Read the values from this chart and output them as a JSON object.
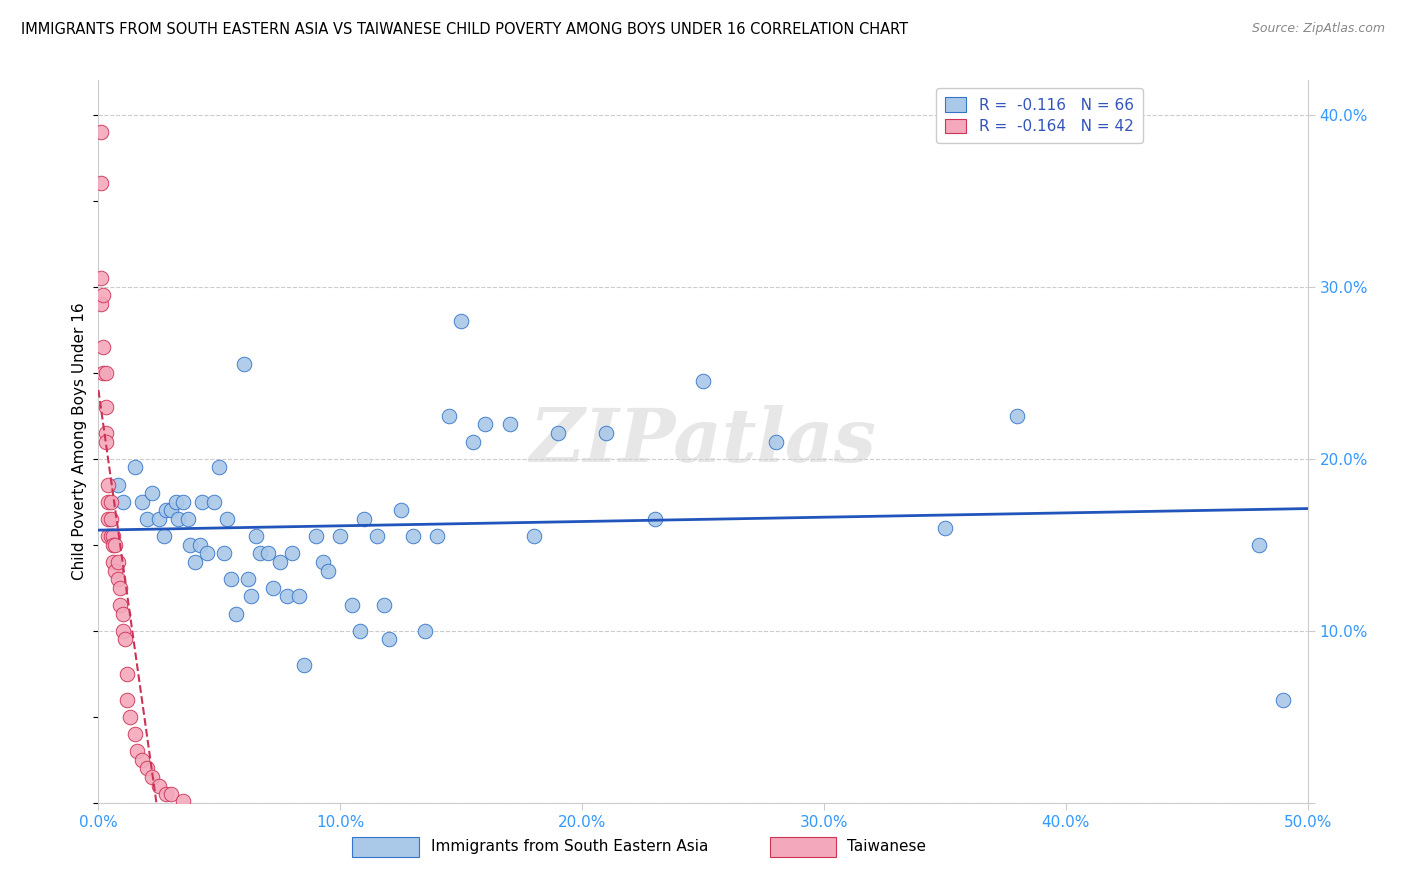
{
  "title": "IMMIGRANTS FROM SOUTH EASTERN ASIA VS TAIWANESE CHILD POVERTY AMONG BOYS UNDER 16 CORRELATION CHART",
  "source": "Source: ZipAtlas.com",
  "ylabel": "Child Poverty Among Boys Under 16",
  "legend_label1": "Immigrants from South Eastern Asia",
  "legend_label2": "Taiwanese",
  "R1": "-0.116",
  "N1": "66",
  "R2": "-0.164",
  "N2": "42",
  "xlim": [
    0.0,
    0.5
  ],
  "ylim": [
    0.0,
    0.42
  ],
  "yticks": [
    0.0,
    0.1,
    0.2,
    0.3,
    0.4
  ],
  "xticks": [
    0.0,
    0.1,
    0.2,
    0.3,
    0.4,
    0.5
  ],
  "xtick_labels": [
    "0.0%",
    "10.0%",
    "20.0%",
    "30.0%",
    "40.0%",
    "50.0%"
  ],
  "ytick_labels": [
    "",
    "10.0%",
    "20.0%",
    "30.0%",
    "40.0%"
  ],
  "color_blue": "#aac8e8",
  "color_pink": "#f4a8bc",
  "line_blue": "#3375c8",
  "line_pink": "#e0406080",
  "reg_blue": "#2255bb",
  "reg_pink": "#cc3355",
  "watermark": "ZIPatlas",
  "blue_x": [
    0.008,
    0.01,
    0.015,
    0.018,
    0.02,
    0.022,
    0.025,
    0.027,
    0.028,
    0.03,
    0.032,
    0.033,
    0.035,
    0.037,
    0.038,
    0.04,
    0.042,
    0.043,
    0.045,
    0.048,
    0.05,
    0.052,
    0.053,
    0.055,
    0.057,
    0.06,
    0.062,
    0.063,
    0.065,
    0.067,
    0.07,
    0.072,
    0.075,
    0.078,
    0.08,
    0.083,
    0.085,
    0.09,
    0.093,
    0.095,
    0.1,
    0.105,
    0.108,
    0.11,
    0.115,
    0.118,
    0.12,
    0.125,
    0.13,
    0.135,
    0.14,
    0.145,
    0.15,
    0.155,
    0.16,
    0.17,
    0.18,
    0.19,
    0.21,
    0.23,
    0.25,
    0.28,
    0.35,
    0.38,
    0.48,
    0.49
  ],
  "blue_y": [
    0.185,
    0.175,
    0.195,
    0.175,
    0.165,
    0.18,
    0.165,
    0.155,
    0.17,
    0.17,
    0.175,
    0.165,
    0.175,
    0.165,
    0.15,
    0.14,
    0.15,
    0.175,
    0.145,
    0.175,
    0.195,
    0.145,
    0.165,
    0.13,
    0.11,
    0.255,
    0.13,
    0.12,
    0.155,
    0.145,
    0.145,
    0.125,
    0.14,
    0.12,
    0.145,
    0.12,
    0.08,
    0.155,
    0.14,
    0.135,
    0.155,
    0.115,
    0.1,
    0.165,
    0.155,
    0.115,
    0.095,
    0.17,
    0.155,
    0.1,
    0.155,
    0.225,
    0.28,
    0.21,
    0.22,
    0.22,
    0.155,
    0.215,
    0.215,
    0.165,
    0.245,
    0.21,
    0.16,
    0.225,
    0.15,
    0.06
  ],
  "pink_x": [
    0.001,
    0.001,
    0.001,
    0.001,
    0.002,
    0.002,
    0.002,
    0.003,
    0.003,
    0.003,
    0.003,
    0.004,
    0.004,
    0.004,
    0.004,
    0.005,
    0.005,
    0.005,
    0.006,
    0.006,
    0.006,
    0.007,
    0.007,
    0.008,
    0.008,
    0.009,
    0.009,
    0.01,
    0.01,
    0.011,
    0.012,
    0.012,
    0.013,
    0.015,
    0.016,
    0.018,
    0.02,
    0.022,
    0.025,
    0.028,
    0.03,
    0.035
  ],
  "pink_y": [
    0.39,
    0.36,
    0.305,
    0.29,
    0.295,
    0.265,
    0.25,
    0.25,
    0.23,
    0.215,
    0.21,
    0.185,
    0.175,
    0.165,
    0.155,
    0.175,
    0.165,
    0.155,
    0.155,
    0.15,
    0.14,
    0.15,
    0.135,
    0.14,
    0.13,
    0.125,
    0.115,
    0.11,
    0.1,
    0.095,
    0.075,
    0.06,
    0.05,
    0.04,
    0.03,
    0.025,
    0.02,
    0.015,
    0.01,
    0.005,
    0.005,
    0.001
  ]
}
